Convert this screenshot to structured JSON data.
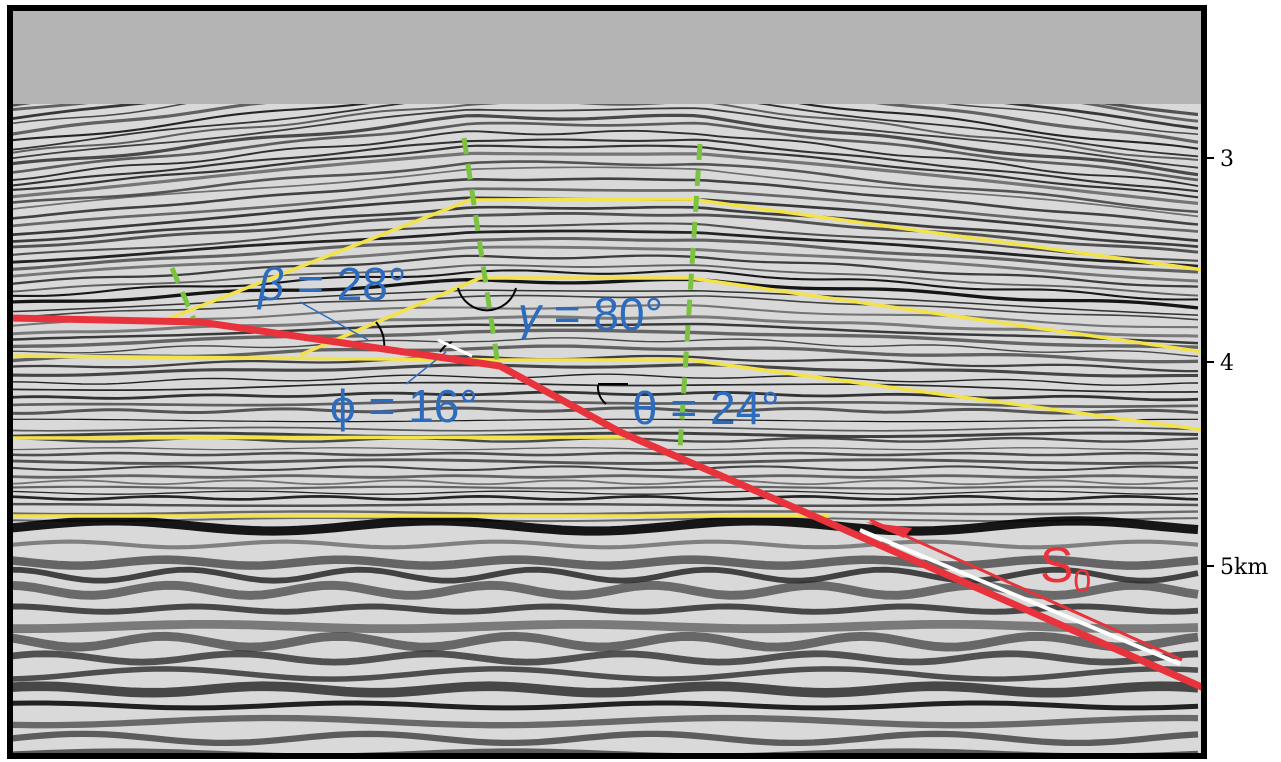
{
  "colors": {
    "water": "#b4b4b4",
    "frame": "#000000",
    "horizon": "#f2e34a",
    "fault": "#e8333c",
    "axial_surface": "#7cc242",
    "label_blue": "#2d6bbf",
    "label_red": "#e8333c",
    "depth_text": "#000000"
  },
  "angle_labels": {
    "beta": {
      "symbol": "β",
      "text": " = 28°"
    },
    "gamma": {
      "symbol": "γ",
      "text": " = 80°"
    },
    "phi": {
      "symbol": "ϕ",
      "text": " = 16°"
    },
    "theta": {
      "symbol": "θ",
      "text": " = 24°"
    }
  },
  "fault_label": {
    "main": "S",
    "subscript": "0"
  },
  "depth_axis": {
    "ticks": [
      {
        "label": "3"
      },
      {
        "label": "4"
      },
      {
        "label": "5km"
      }
    ]
  }
}
